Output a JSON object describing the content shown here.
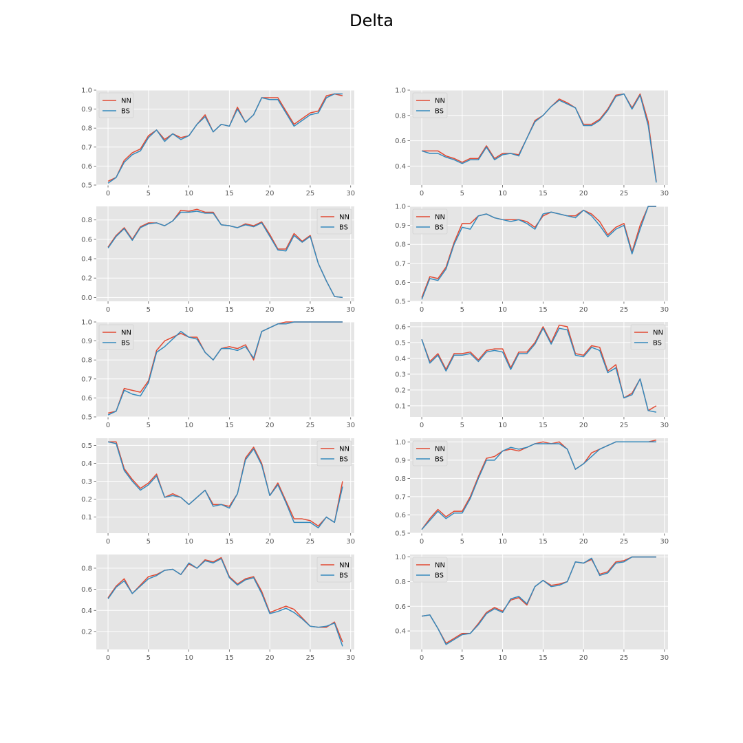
{
  "figure": {
    "title": "Delta"
  },
  "colors": {
    "nn": "#E24A33",
    "bs": "#348ABD",
    "plot_bg": "#E5E5E5",
    "grid": "#FFFFFF"
  },
  "chart_data": [
    {
      "type": "line",
      "panel": "row1-left",
      "legend_position": "upper-left",
      "ylim": [
        0.5,
        1.0
      ],
      "yticks": [
        0.5,
        0.6,
        0.7,
        0.8,
        0.9,
        1.0
      ],
      "ytick_labels": [
        "0.5",
        "0.6",
        "0.7",
        "0.8",
        "0.9",
        "1.0"
      ],
      "series": [
        {
          "name": "NN",
          "values": [
            0.52,
            0.54,
            0.63,
            0.67,
            0.69,
            0.76,
            0.79,
            0.74,
            0.77,
            0.75,
            0.76,
            0.82,
            0.87,
            0.78,
            0.82,
            0.81,
            0.91,
            0.83,
            0.87,
            0.96,
            0.96,
            0.96,
            0.89,
            0.82,
            0.85,
            0.88,
            0.89,
            0.97,
            0.98,
            0.97
          ]
        },
        {
          "name": "BS",
          "values": [
            0.51,
            0.54,
            0.62,
            0.66,
            0.68,
            0.75,
            0.79,
            0.73,
            0.77,
            0.74,
            0.76,
            0.82,
            0.86,
            0.78,
            0.82,
            0.81,
            0.9,
            0.83,
            0.87,
            0.96,
            0.95,
            0.95,
            0.88,
            0.81,
            0.84,
            0.87,
            0.88,
            0.96,
            0.98,
            0.98
          ]
        }
      ]
    },
    {
      "type": "line",
      "panel": "row1-right",
      "legend_position": "upper-left",
      "ylim": [
        0.25,
        1.0
      ],
      "yticks": [
        0.4,
        0.6,
        0.8,
        1.0
      ],
      "ytick_labels": [
        "0.4",
        "0.6",
        "0.8",
        "1.0"
      ],
      "series": [
        {
          "name": "NN",
          "values": [
            0.52,
            0.52,
            0.52,
            0.48,
            0.46,
            0.43,
            0.46,
            0.46,
            0.56,
            0.46,
            0.5,
            0.5,
            0.49,
            0.62,
            0.76,
            0.8,
            0.87,
            0.93,
            0.9,
            0.86,
            0.73,
            0.73,
            0.77,
            0.85,
            0.96,
            0.97,
            0.86,
            0.97,
            0.75,
            0.28
          ]
        },
        {
          "name": "BS",
          "values": [
            0.52,
            0.5,
            0.5,
            0.47,
            0.45,
            0.42,
            0.45,
            0.45,
            0.55,
            0.45,
            0.49,
            0.5,
            0.48,
            0.62,
            0.75,
            0.8,
            0.87,
            0.92,
            0.89,
            0.86,
            0.72,
            0.72,
            0.76,
            0.84,
            0.95,
            0.97,
            0.85,
            0.96,
            0.72,
            0.27
          ]
        }
      ]
    },
    {
      "type": "line",
      "panel": "row2-left",
      "legend_position": "upper-right",
      "ylim": [
        -0.04,
        0.94
      ],
      "yticks": [
        0.0,
        0.2,
        0.4,
        0.6,
        0.8
      ],
      "ytick_labels": [
        "0.0",
        "0.2",
        "0.4",
        "0.6",
        "0.8"
      ],
      "series": [
        {
          "name": "NN",
          "values": [
            0.52,
            0.64,
            0.72,
            0.6,
            0.73,
            0.77,
            0.77,
            0.74,
            0.79,
            0.9,
            0.89,
            0.91,
            0.88,
            0.88,
            0.75,
            0.74,
            0.72,
            0.76,
            0.74,
            0.78,
            0.65,
            0.5,
            0.5,
            0.66,
            0.58,
            0.64,
            0.35,
            0.17,
            0.01,
            0.0
          ]
        },
        {
          "name": "BS",
          "values": [
            0.51,
            0.63,
            0.71,
            0.59,
            0.72,
            0.76,
            0.77,
            0.74,
            0.79,
            0.88,
            0.88,
            0.89,
            0.87,
            0.87,
            0.75,
            0.74,
            0.72,
            0.75,
            0.73,
            0.77,
            0.63,
            0.49,
            0.48,
            0.64,
            0.57,
            0.63,
            0.35,
            0.17,
            0.01,
            0.0
          ]
        }
      ]
    },
    {
      "type": "line",
      "panel": "row2-right",
      "legend_position": "upper-left",
      "ylim": [
        0.5,
        1.0
      ],
      "yticks": [
        0.5,
        0.6,
        0.7,
        0.8,
        0.9,
        1.0
      ],
      "ytick_labels": [
        "0.5",
        "0.6",
        "0.7",
        "0.8",
        "0.9",
        "1.0"
      ],
      "series": [
        {
          "name": "NN",
          "values": [
            0.52,
            0.63,
            0.62,
            0.68,
            0.81,
            0.91,
            0.91,
            0.95,
            0.96,
            0.94,
            0.93,
            0.93,
            0.93,
            0.92,
            0.89,
            0.95,
            0.97,
            0.96,
            0.95,
            0.95,
            0.98,
            0.96,
            0.92,
            0.85,
            0.89,
            0.91,
            0.76,
            0.9,
            1.0,
            1.0
          ]
        },
        {
          "name": "BS",
          "values": [
            0.51,
            0.62,
            0.61,
            0.67,
            0.8,
            0.89,
            0.88,
            0.95,
            0.96,
            0.94,
            0.93,
            0.92,
            0.93,
            0.91,
            0.88,
            0.96,
            0.97,
            0.96,
            0.95,
            0.94,
            0.98,
            0.95,
            0.9,
            0.84,
            0.88,
            0.9,
            0.75,
            0.88,
            1.0,
            1.0
          ]
        }
      ]
    },
    {
      "type": "line",
      "panel": "row3-left",
      "legend_position": "upper-left",
      "ylim": [
        0.5,
        1.0
      ],
      "yticks": [
        0.5,
        0.6,
        0.7,
        0.8,
        0.9,
        1.0
      ],
      "ytick_labels": [
        "0.5",
        "0.6",
        "0.7",
        "0.8",
        "0.9",
        "1.0"
      ],
      "series": [
        {
          "name": "NN",
          "values": [
            0.52,
            0.53,
            0.65,
            0.64,
            0.63,
            0.69,
            0.85,
            0.9,
            0.92,
            0.94,
            0.92,
            0.92,
            0.84,
            0.8,
            0.86,
            0.87,
            0.86,
            0.88,
            0.8,
            0.95,
            0.97,
            0.99,
            1.0,
            1.0,
            1.0,
            1.0,
            1.0,
            1.0,
            1.0,
            1.0
          ]
        },
        {
          "name": "BS",
          "values": [
            0.51,
            0.53,
            0.64,
            0.62,
            0.61,
            0.68,
            0.84,
            0.87,
            0.91,
            0.95,
            0.92,
            0.91,
            0.84,
            0.8,
            0.86,
            0.86,
            0.85,
            0.87,
            0.81,
            0.95,
            0.97,
            0.99,
            0.99,
            1.0,
            1.0,
            1.0,
            1.0,
            1.0,
            1.0,
            1.0
          ]
        }
      ]
    },
    {
      "type": "line",
      "panel": "row3-right",
      "legend_position": "upper-right",
      "ylim": [
        0.03,
        0.63
      ],
      "yticks": [
        0.1,
        0.2,
        0.3,
        0.4,
        0.5,
        0.6
      ],
      "ytick_labels": [
        "0.1",
        "0.2",
        "0.3",
        "0.4",
        "0.5",
        "0.6"
      ],
      "series": [
        {
          "name": "NN",
          "values": [
            0.52,
            0.38,
            0.43,
            0.33,
            0.43,
            0.43,
            0.44,
            0.39,
            0.45,
            0.46,
            0.46,
            0.34,
            0.44,
            0.44,
            0.5,
            0.6,
            0.5,
            0.61,
            0.6,
            0.43,
            0.42,
            0.48,
            0.47,
            0.32,
            0.36,
            0.15,
            0.18,
            0.27,
            0.07,
            0.1
          ]
        },
        {
          "name": "BS",
          "values": [
            0.52,
            0.37,
            0.42,
            0.32,
            0.42,
            0.42,
            0.43,
            0.38,
            0.44,
            0.45,
            0.44,
            0.33,
            0.43,
            0.43,
            0.49,
            0.59,
            0.49,
            0.59,
            0.58,
            0.42,
            0.41,
            0.47,
            0.45,
            0.31,
            0.34,
            0.15,
            0.17,
            0.27,
            0.07,
            0.06
          ]
        }
      ]
    },
    {
      "type": "line",
      "panel": "row4-left",
      "legend_position": "upper-right",
      "ylim": [
        0.01,
        0.54
      ],
      "yticks": [
        0.1,
        0.2,
        0.3,
        0.4,
        0.5
      ],
      "ytick_labels": [
        "0.1",
        "0.2",
        "0.3",
        "0.4",
        "0.5"
      ],
      "series": [
        {
          "name": "NN",
          "values": [
            0.52,
            0.52,
            0.37,
            0.31,
            0.26,
            0.29,
            0.34,
            0.21,
            0.23,
            0.21,
            0.17,
            0.21,
            0.25,
            0.17,
            0.17,
            0.16,
            0.23,
            0.43,
            0.49,
            0.4,
            0.22,
            0.29,
            0.19,
            0.09,
            0.09,
            0.08,
            0.05,
            0.1,
            0.07,
            0.3
          ]
        },
        {
          "name": "BS",
          "values": [
            0.52,
            0.51,
            0.36,
            0.3,
            0.25,
            0.28,
            0.33,
            0.21,
            0.22,
            0.21,
            0.17,
            0.21,
            0.25,
            0.16,
            0.17,
            0.15,
            0.23,
            0.42,
            0.48,
            0.39,
            0.22,
            0.28,
            0.18,
            0.07,
            0.07,
            0.07,
            0.04,
            0.1,
            0.07,
            0.27
          ]
        }
      ]
    },
    {
      "type": "line",
      "panel": "row4-right",
      "legend_position": "upper-left",
      "ylim": [
        0.5,
        1.02
      ],
      "yticks": [
        0.5,
        0.6,
        0.7,
        0.8,
        0.9,
        1.0
      ],
      "ytick_labels": [
        "0.5",
        "0.6",
        "0.7",
        "0.8",
        "0.9",
        "1.0"
      ],
      "series": [
        {
          "name": "NN",
          "values": [
            0.52,
            0.58,
            0.63,
            0.59,
            0.62,
            0.62,
            0.7,
            0.81,
            0.91,
            0.92,
            0.95,
            0.96,
            0.95,
            0.97,
            0.99,
            1.0,
            0.99,
            1.0,
            0.96,
            0.85,
            0.88,
            0.94,
            0.96,
            0.98,
            1.0,
            1.0,
            1.0,
            1.0,
            1.0,
            1.01
          ]
        },
        {
          "name": "BS",
          "values": [
            0.52,
            0.57,
            0.62,
            0.58,
            0.61,
            0.61,
            0.69,
            0.8,
            0.9,
            0.9,
            0.95,
            0.97,
            0.96,
            0.97,
            0.99,
            0.99,
            0.99,
            0.99,
            0.96,
            0.85,
            0.88,
            0.92,
            0.96,
            0.98,
            1.0,
            1.0,
            1.0,
            1.0,
            1.0,
            1.0
          ]
        }
      ]
    },
    {
      "type": "line",
      "panel": "row5-left",
      "legend_position": "upper-right",
      "ylim": [
        0.03,
        0.93
      ],
      "yticks": [
        0.2,
        0.4,
        0.6,
        0.8
      ],
      "ytick_labels": [
        "0.2",
        "0.4",
        "0.6",
        "0.8"
      ],
      "series": [
        {
          "name": "NN",
          "values": [
            0.52,
            0.63,
            0.7,
            0.56,
            0.64,
            0.72,
            0.74,
            0.78,
            0.79,
            0.74,
            0.84,
            0.8,
            0.88,
            0.86,
            0.9,
            0.72,
            0.65,
            0.7,
            0.72,
            0.58,
            0.38,
            0.41,
            0.44,
            0.41,
            0.33,
            0.25,
            0.24,
            0.24,
            0.29,
            0.1
          ]
        },
        {
          "name": "BS",
          "values": [
            0.51,
            0.62,
            0.68,
            0.56,
            0.63,
            0.7,
            0.73,
            0.78,
            0.79,
            0.74,
            0.85,
            0.8,
            0.87,
            0.85,
            0.89,
            0.71,
            0.64,
            0.69,
            0.71,
            0.56,
            0.37,
            0.39,
            0.42,
            0.38,
            0.32,
            0.25,
            0.24,
            0.25,
            0.28,
            0.06
          ]
        }
      ]
    },
    {
      "type": "line",
      "panel": "row5-right",
      "legend_position": "upper-left",
      "ylim": [
        0.25,
        1.02
      ],
      "yticks": [
        0.4,
        0.6,
        0.8,
        1.0
      ],
      "ytick_labels": [
        "0.4",
        "0.6",
        "0.8",
        "1.0"
      ],
      "series": [
        {
          "name": "NN",
          "values": [
            0.52,
            0.53,
            0.42,
            0.3,
            0.34,
            0.38,
            0.38,
            0.46,
            0.55,
            0.59,
            0.56,
            0.65,
            0.67,
            0.61,
            0.76,
            0.81,
            0.77,
            0.78,
            0.8,
            0.96,
            0.95,
            0.98,
            0.86,
            0.88,
            0.96,
            0.97,
            1.0,
            1.0,
            1.0,
            1.0
          ]
        },
        {
          "name": "BS",
          "values": [
            0.52,
            0.53,
            0.42,
            0.29,
            0.33,
            0.37,
            0.38,
            0.45,
            0.54,
            0.58,
            0.55,
            0.66,
            0.68,
            0.62,
            0.76,
            0.81,
            0.76,
            0.77,
            0.8,
            0.96,
            0.95,
            0.99,
            0.85,
            0.87,
            0.95,
            0.96,
            1.0,
            1.0,
            1.0,
            1.0
          ]
        }
      ]
    }
  ],
  "x_axis": {
    "xlim": [
      -1.45,
      30.45
    ],
    "xticks": [
      0,
      5,
      10,
      15,
      20,
      25,
      30
    ],
    "xtick_labels": [
      "0",
      "5",
      "10",
      "15",
      "20",
      "25",
      "30"
    ]
  }
}
